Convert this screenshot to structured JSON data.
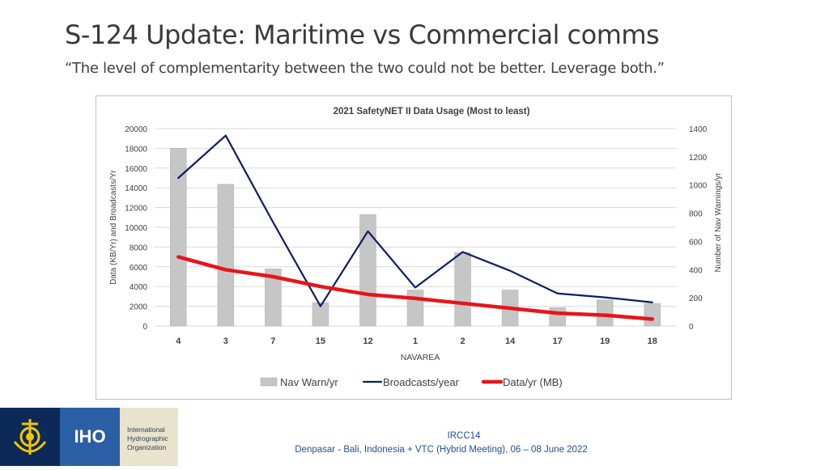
{
  "slide": {
    "title": "S-124 Update: Maritime vs Commercial comms",
    "subtitle": "“The level of complementarity between the two could not be better.  Leverage both.”"
  },
  "chart_data": {
    "type": "bar",
    "title": "2021 SafetyNET II Data Usage (Most to least)",
    "xlabel": "NAVAREA",
    "ylabel": "Data (KB/Yr) and Broadcasts/Yr",
    "y2label": "Number of Nav Warnings/yr",
    "categories": [
      "4",
      "3",
      "7",
      "15",
      "12",
      "1",
      "2",
      "14",
      "17",
      "19",
      "18"
    ],
    "ylim": [
      0,
      20000
    ],
    "y2lim": [
      0,
      1400
    ],
    "yticks": [
      "0",
      "2000",
      "4000",
      "6000",
      "8000",
      "10000",
      "12000",
      "14000",
      "16000",
      "18000",
      "20000"
    ],
    "y2ticks": [
      "0",
      "200",
      "400",
      "600",
      "800",
      "1000",
      "1200",
      "1400"
    ],
    "grid": true,
    "legend_position": "bottom",
    "series": [
      {
        "name": "Nav Warn/yr",
        "type": "bar",
        "axis": "right",
        "color": "#c6c6c6",
        "values": [
          1260,
          1005,
          405,
          165,
          790,
          255,
          520,
          255,
          130,
          185,
          160
        ]
      },
      {
        "name": "Broadcasts/year",
        "type": "line",
        "axis": "left",
        "color": "#0d1e63",
        "values": [
          15000,
          19300,
          10500,
          2000,
          9600,
          3900,
          7500,
          5600,
          3300,
          2900,
          2400
        ]
      },
      {
        "name": "Data/yr (MB)",
        "type": "line",
        "axis": "left",
        "color": "#e8141b",
        "values": [
          7000,
          5700,
          5000,
          4000,
          3200,
          2800,
          2300,
          1800,
          1300,
          1100,
          700
        ]
      }
    ]
  },
  "footer": {
    "org_name": [
      "International",
      "Hydrographic",
      "Organization"
    ],
    "logo_text": "IHO",
    "event": "IRCC14",
    "venue": "Denpasar - Bali, Indonesia + VTC (Hybrid Meeting), 06 – 08 June 2022"
  }
}
